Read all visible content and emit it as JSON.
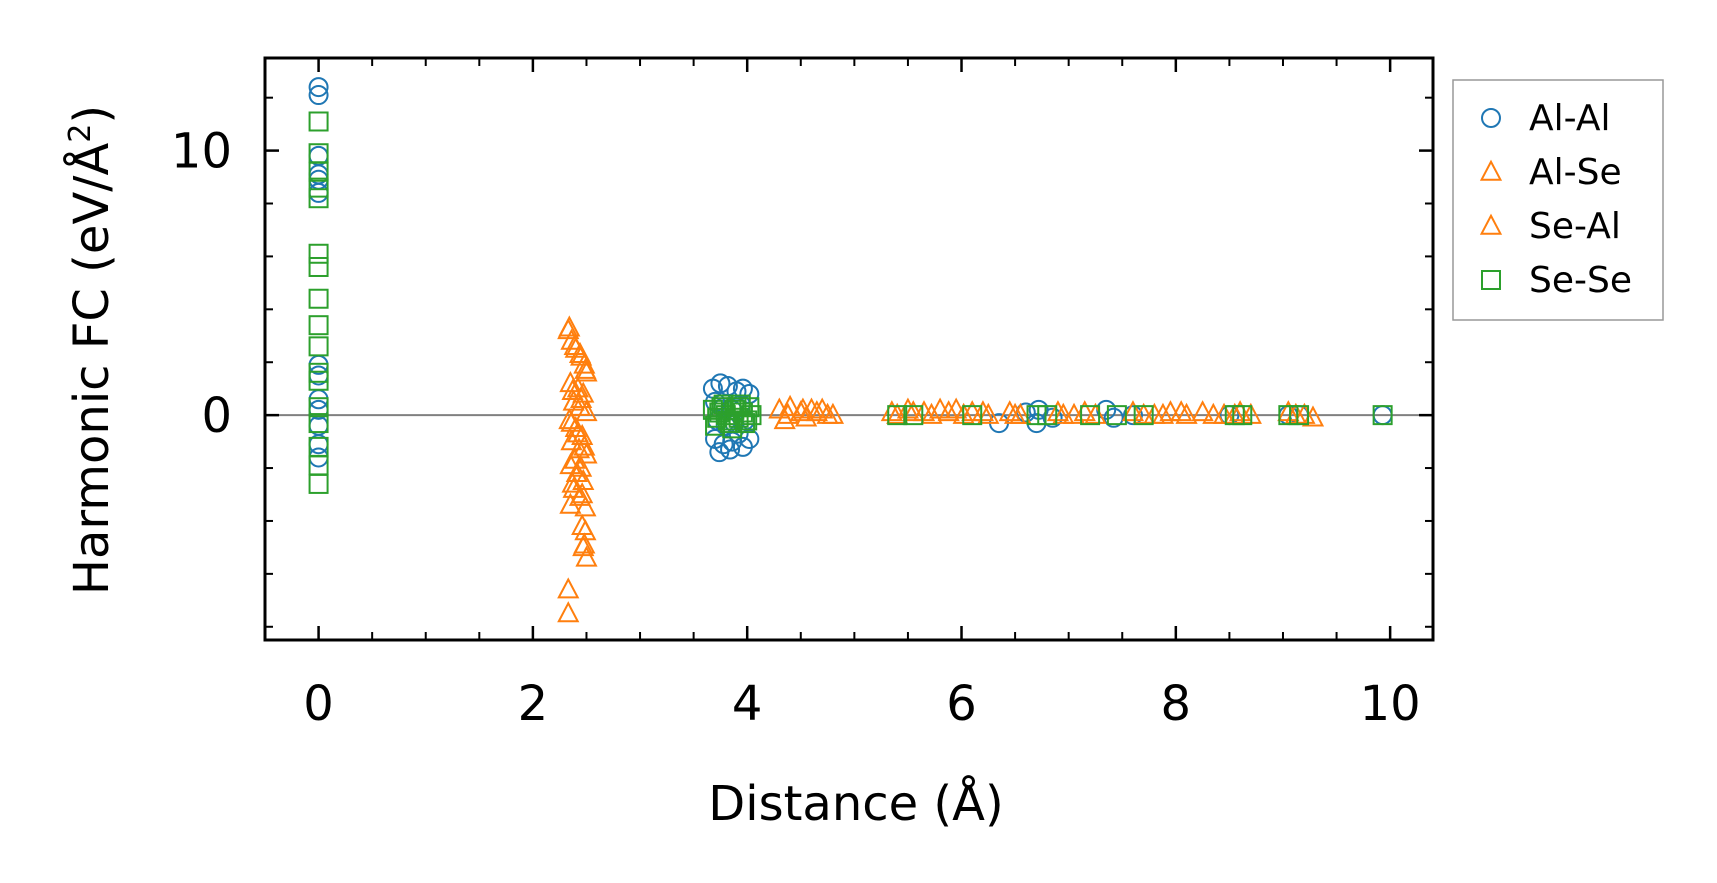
{
  "chart_data": {
    "type": "scatter",
    "xlabel": "Distance (Å)",
    "ylabel": "Harmonic FC (eV/Å",
    "ylabel_superscript": "2",
    "ylabel_close": ")",
    "xlim": [
      -0.5,
      10.4
    ],
    "ylim": [
      -8.5,
      13.5
    ],
    "x_major_ticks": [
      0,
      2,
      4,
      6,
      8,
      10
    ],
    "x_tick_labels": [
      "0",
      "2",
      "4",
      "6",
      "8",
      "10"
    ],
    "x_minor_ticks": [
      0.5,
      1.0,
      1.5,
      2.5,
      3.0,
      3.5,
      4.5,
      5.0,
      5.5,
      6.5,
      7.0,
      7.5,
      8.5,
      9.0,
      9.5
    ],
    "y_major_ticks": [
      0,
      10
    ],
    "y_tick_labels": [
      "0",
      "10"
    ],
    "y_minor_ticks": [
      -8,
      -6,
      -4,
      -2,
      2,
      4,
      6,
      8,
      12
    ],
    "zero_line": true,
    "grid": false,
    "legend_position": "outside right, top",
    "series": [
      {
        "name": "Al-Al",
        "marker": "circle",
        "color": "#1f77b4",
        "points": [
          [
            0,
            12.4
          ],
          [
            0,
            12.1
          ],
          [
            0,
            9.8
          ],
          [
            0,
            9.1
          ],
          [
            0,
            8.9
          ],
          [
            0,
            8.4
          ],
          [
            0,
            1.9
          ],
          [
            0,
            1.5
          ],
          [
            0,
            0.6
          ],
          [
            0,
            0.2
          ],
          [
            0,
            -0.4
          ],
          [
            0,
            -1.1
          ],
          [
            0,
            -1.6
          ],
          [
            3.68,
            1.0
          ],
          [
            3.75,
            1.2
          ],
          [
            3.82,
            1.1
          ],
          [
            3.9,
            0.9
          ],
          [
            3.96,
            1.0
          ],
          [
            4.02,
            0.8
          ],
          [
            3.7,
            0.5
          ],
          [
            3.78,
            0.3
          ],
          [
            3.86,
            0.2
          ],
          [
            3.94,
            0.4
          ],
          [
            3.72,
            -0.2
          ],
          [
            3.8,
            -0.4
          ],
          [
            3.88,
            -0.3
          ],
          [
            3.98,
            -0.2
          ],
          [
            3.7,
            -0.9
          ],
          [
            3.78,
            -1.1
          ],
          [
            3.86,
            -1.0
          ],
          [
            3.96,
            -1.2
          ],
          [
            4.02,
            -0.9
          ],
          [
            3.74,
            -1.4
          ],
          [
            3.84,
            -1.3
          ],
          [
            3.92,
            -0.7
          ],
          [
            6.35,
            -0.3
          ],
          [
            6.6,
            0.1
          ],
          [
            6.7,
            -0.3
          ],
          [
            6.72,
            0.2
          ],
          [
            6.85,
            -0.1
          ],
          [
            7.35,
            0.2
          ],
          [
            7.42,
            -0.1
          ],
          [
            7.6,
            0.0
          ],
          [
            8.5,
            0.0
          ],
          [
            9.05,
            0.0
          ],
          [
            9.15,
            0.0
          ],
          [
            9.93,
            0.0
          ]
        ]
      },
      {
        "name": "Al-Se",
        "marker": "triangle",
        "color": "#ff7f0e",
        "points": [
          [
            2.33,
            3.2
          ],
          [
            2.36,
            2.8
          ],
          [
            2.4,
            2.5
          ],
          [
            2.45,
            2.2
          ],
          [
            2.48,
            1.9
          ],
          [
            2.5,
            1.6
          ],
          [
            2.35,
            1.2
          ],
          [
            2.42,
            1.0
          ],
          [
            2.47,
            0.8
          ],
          [
            2.38,
            0.5
          ],
          [
            2.44,
            0.3
          ],
          [
            2.5,
            0.1
          ],
          [
            2.34,
            -0.2
          ],
          [
            2.4,
            -0.5
          ],
          [
            2.46,
            -0.8
          ],
          [
            2.36,
            -1.0
          ],
          [
            2.43,
            -1.3
          ],
          [
            2.5,
            -1.5
          ],
          [
            2.35,
            -1.9
          ],
          [
            2.41,
            -2.2
          ],
          [
            2.47,
            -2.5
          ],
          [
            2.38,
            -2.8
          ],
          [
            2.44,
            -3.1
          ],
          [
            2.49,
            -3.5
          ],
          [
            2.35,
            -3.4
          ],
          [
            2.46,
            -4.2
          ],
          [
            2.48,
            -4.9
          ],
          [
            2.5,
            -5.4
          ],
          [
            2.33,
            -6.6
          ],
          [
            2.33,
            -7.5
          ],
          [
            4.3,
            0.2
          ],
          [
            4.4,
            0.3
          ],
          [
            4.5,
            0.1
          ],
          [
            4.6,
            0.2
          ],
          [
            4.7,
            0.2
          ],
          [
            4.8,
            0.0
          ],
          [
            4.35,
            -0.2
          ],
          [
            4.55,
            -0.1
          ],
          [
            5.35,
            0.1
          ],
          [
            5.5,
            0.2
          ],
          [
            5.65,
            0.1
          ],
          [
            5.8,
            0.2
          ],
          [
            5.95,
            0.2
          ],
          [
            6.1,
            0.1
          ],
          [
            6.25,
            0.0
          ],
          [
            6.45,
            0.1
          ],
          [
            6.55,
            0.0
          ],
          [
            6.9,
            0.1
          ],
          [
            7.05,
            0.0
          ],
          [
            7.25,
            0.0
          ],
          [
            7.6,
            0.1
          ],
          [
            7.8,
            0.0
          ],
          [
            7.95,
            0.1
          ],
          [
            8.1,
            0.0
          ],
          [
            8.25,
            0.1
          ],
          [
            8.45,
            0.0
          ],
          [
            8.6,
            0.1
          ],
          [
            8.7,
            0.0
          ],
          [
            9.05,
            0.1
          ],
          [
            9.2,
            0.0
          ],
          [
            9.28,
            -0.1
          ]
        ]
      },
      {
        "name": "Se-Al",
        "marker": "triangle",
        "color": "#ff7f0e",
        "points": [
          [
            2.34,
            3.3
          ],
          [
            2.39,
            2.6
          ],
          [
            2.44,
            2.3
          ],
          [
            2.49,
            1.7
          ],
          [
            2.37,
            0.9
          ],
          [
            2.45,
            0.6
          ],
          [
            2.36,
            -0.3
          ],
          [
            2.42,
            -0.7
          ],
          [
            2.48,
            -1.2
          ],
          [
            2.39,
            -1.7
          ],
          [
            2.45,
            -2.0
          ],
          [
            2.37,
            -2.6
          ],
          [
            2.46,
            -3.0
          ],
          [
            2.49,
            -4.4
          ],
          [
            2.47,
            -5.0
          ],
          [
            4.38,
            0.0
          ],
          [
            4.52,
            0.2
          ],
          [
            4.65,
            0.1
          ],
          [
            4.75,
            0.0
          ],
          [
            5.4,
            0.0
          ],
          [
            5.55,
            0.1
          ],
          [
            5.72,
            0.0
          ],
          [
            5.88,
            0.1
          ],
          [
            6.02,
            0.0
          ],
          [
            6.2,
            0.1
          ],
          [
            6.5,
            0.0
          ],
          [
            6.95,
            0.0
          ],
          [
            7.15,
            0.1
          ],
          [
            7.7,
            0.0
          ],
          [
            7.88,
            0.0
          ],
          [
            8.05,
            0.1
          ],
          [
            8.35,
            0.0
          ],
          [
            8.55,
            0.0
          ],
          [
            9.12,
            0.0
          ]
        ]
      },
      {
        "name": "Se-Se",
        "marker": "square",
        "color": "#2ca02c",
        "points": [
          [
            0,
            11.1
          ],
          [
            0,
            9.9
          ],
          [
            0,
            9.2
          ],
          [
            0,
            8.6
          ],
          [
            0,
            8.2
          ],
          [
            0,
            6.1
          ],
          [
            0,
            5.6
          ],
          [
            0,
            4.4
          ],
          [
            0,
            3.4
          ],
          [
            0,
            2.6
          ],
          [
            0,
            1.6
          ],
          [
            0,
            1.3
          ],
          [
            0,
            0.3
          ],
          [
            0,
            -0.3
          ],
          [
            0,
            -1.2
          ],
          [
            0,
            -1.9
          ],
          [
            0,
            -2.6
          ],
          [
            3.68,
            0.2
          ],
          [
            3.72,
            -0.1
          ],
          [
            3.76,
            0.3
          ],
          [
            3.8,
            0.0
          ],
          [
            3.84,
            -0.3
          ],
          [
            3.88,
            0.2
          ],
          [
            3.92,
            -0.1
          ],
          [
            3.96,
            0.1
          ],
          [
            4.0,
            -0.2
          ],
          [
            4.04,
            0.0
          ],
          [
            3.7,
            -0.4
          ],
          [
            3.78,
            0.4
          ],
          [
            3.86,
            -0.5
          ],
          [
            3.94,
            0.4
          ],
          [
            4.02,
            0.3
          ],
          [
            3.74,
            0.1
          ],
          [
            3.82,
            -0.2
          ],
          [
            3.9,
            0.3
          ],
          [
            3.98,
            -0.3
          ],
          [
            5.4,
            0.0
          ],
          [
            5.55,
            0.0
          ],
          [
            6.1,
            0.0
          ],
          [
            6.7,
            0.0
          ],
          [
            6.8,
            0.0
          ],
          [
            7.2,
            0.0
          ],
          [
            7.45,
            0.0
          ],
          [
            7.7,
            0.0
          ],
          [
            8.55,
            0.0
          ],
          [
            8.62,
            0.0
          ],
          [
            9.05,
            0.0
          ],
          [
            9.15,
            0.0
          ],
          [
            9.93,
            0.0
          ]
        ]
      }
    ]
  }
}
